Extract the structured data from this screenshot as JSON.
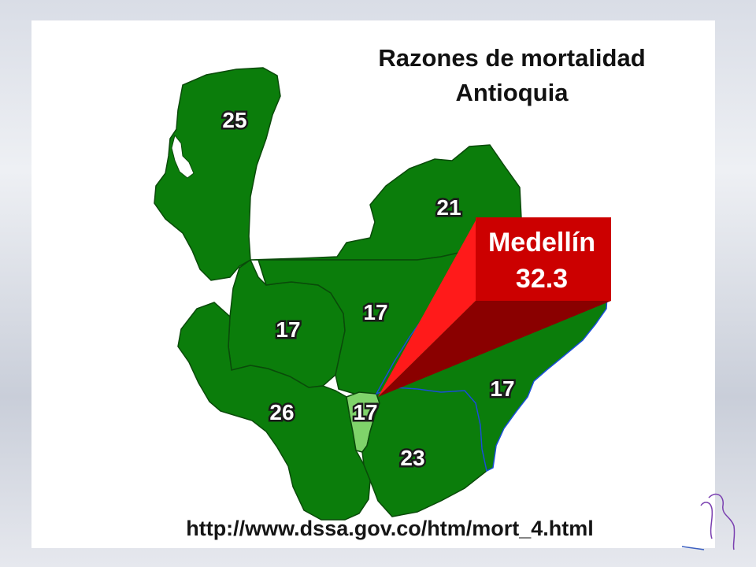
{
  "title": {
    "line1": "Razones de mortalidad",
    "line2": "Antioquia"
  },
  "regions": [
    {
      "id": "uraba",
      "value": "25"
    },
    {
      "id": "norte",
      "value": "21"
    },
    {
      "id": "occidente",
      "value": "17"
    },
    {
      "id": "centro",
      "value": "17"
    },
    {
      "id": "suroeste",
      "value": "26"
    },
    {
      "id": "valle-aburra",
      "value": "17"
    },
    {
      "id": "oriente",
      "value": "23"
    },
    {
      "id": "magdalena-medio",
      "value": "17"
    }
  ],
  "callout": {
    "city": "Medellín",
    "value": "32.3"
  },
  "source_url": "http://www.dssa.gov.co/htm/mort_4.html",
  "colors": {
    "region_fill": "#0b7d0b",
    "highlight_fill": "#7fd36a",
    "callout_red": "#cc0000",
    "callout_dark": "#8a0000",
    "callout_light": "#ff1a1a"
  }
}
